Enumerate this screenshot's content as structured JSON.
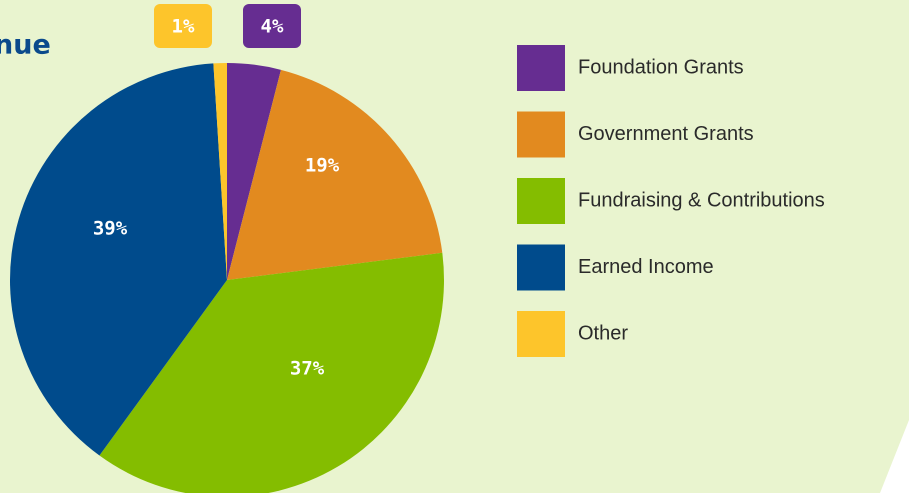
{
  "chart_data": {
    "type": "pie",
    "title": "nue",
    "categories": [
      "Foundation Grants",
      "Government Grants",
      "Fundraising & Contributions",
      "Earned Income",
      "Other"
    ],
    "values": [
      4,
      19,
      37,
      39,
      1
    ],
    "value_labels": [
      "4%",
      "19%",
      "37%",
      "39%",
      "1%"
    ],
    "colors": [
      "#662d91",
      "#e28a1f",
      "#84bd00",
      "#004b8c",
      "#fdc52b"
    ],
    "legend": "right"
  }
}
